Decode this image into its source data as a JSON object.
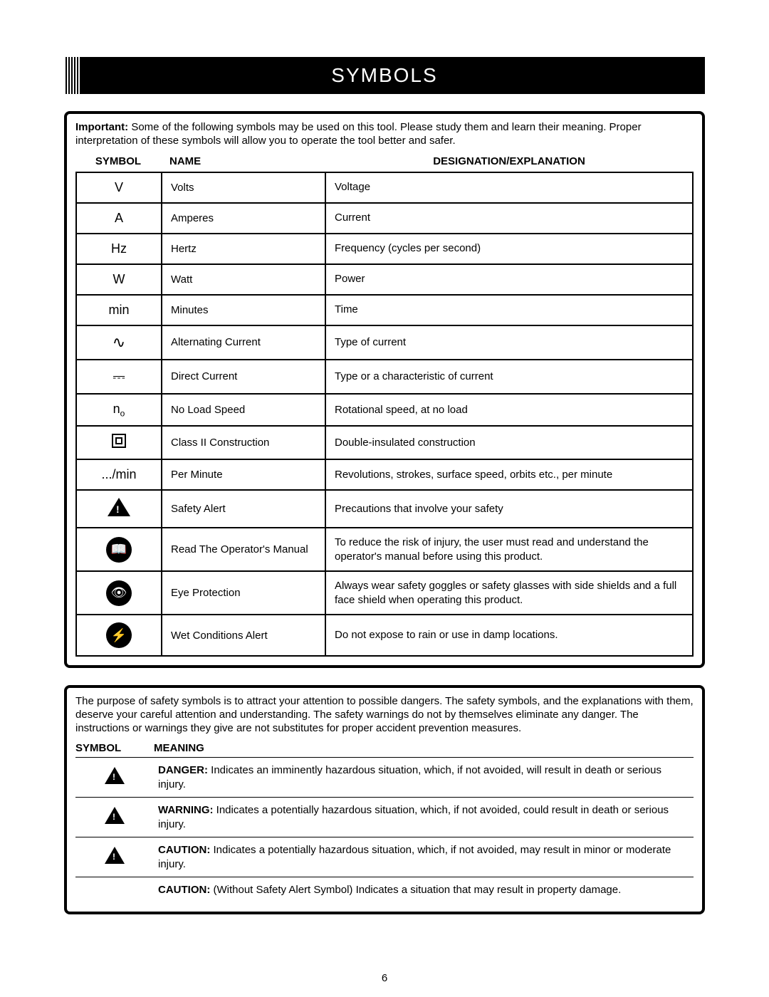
{
  "header": {
    "title": "SYMBOLS"
  },
  "box1": {
    "intro_prefix": "Important:",
    "intro_rest": " Some of the following symbols may be used on this tool. Please study them and learn their meaning. Proper interpretation of these symbols will allow you to operate the tool better and safer.",
    "col_symbol": "SYMBOL",
    "col_name": "NAME",
    "col_desc": "DESIGNATION/EXPLANATION",
    "rows": [
      {
        "sym_type": "text",
        "sym": "V",
        "name": "Volts",
        "desc": "Voltage"
      },
      {
        "sym_type": "text",
        "sym": "A",
        "name": "Amperes",
        "desc": "Current"
      },
      {
        "sym_type": "text",
        "sym": "Hz",
        "name": "Hertz",
        "desc": "Frequency (cycles per second)"
      },
      {
        "sym_type": "text",
        "sym": "W",
        "name": "Watt",
        "desc": "Power"
      },
      {
        "sym_type": "text",
        "sym": "min",
        "name": "Minutes",
        "desc": "Time"
      },
      {
        "sym_type": "glyph",
        "sym": "∿",
        "name": "Alternating Current",
        "desc": "Type of current"
      },
      {
        "sym_type": "glyph",
        "sym": "⎓",
        "name": "Direct Current",
        "desc": "Type or a characteristic of current"
      },
      {
        "sym_type": "nsub",
        "sym": "n",
        "sub": "o",
        "name": "No Load Speed",
        "desc": "Rotational speed, at no load"
      },
      {
        "sym_type": "dblsq",
        "name": "Class II Construction",
        "desc": "Double-insulated construction"
      },
      {
        "sym_type": "text",
        "sym": ".../min",
        "name": "Per Minute",
        "desc": "Revolutions, strokes, surface speed, orbits etc., per minute"
      },
      {
        "sym_type": "tri",
        "name": "Safety Alert",
        "desc": "Precautions that involve your safety"
      },
      {
        "sym_type": "circ",
        "glyph": "📖",
        "name": "Read The Operator's Manual",
        "desc": "To reduce the risk of injury, the user must read and understand the operator's manual before using this product."
      },
      {
        "sym_type": "circ",
        "glyph": "👁",
        "name": "Eye Protection",
        "desc": "Always wear safety goggles or safety glasses with side shields and a full face shield when operating this product."
      },
      {
        "sym_type": "circ",
        "glyph": "⚡",
        "name": "Wet Conditions Alert",
        "desc": "Do not expose to rain or use in damp locations."
      }
    ]
  },
  "box2": {
    "intro": "The purpose of safety symbols is to attract your attention to possible dangers. The safety symbols, and the explanations with them, deserve your careful attention and understanding. The safety warnings do not by themselves eliminate any danger. The instructions or warnings they give are not substitutes for proper accident prevention measures.",
    "col_symbol": "SYMBOL",
    "col_meaning": "MEANING",
    "rows": [
      {
        "icon": true,
        "label": "DANGER:",
        "text": " Indicates an imminently hazardous situation, which, if not avoided, will result in death or serious injury."
      },
      {
        "icon": true,
        "label": "WARNING:",
        "text": " Indicates a potentially hazardous situation, which, if not avoided, could result in death or serious injury."
      },
      {
        "icon": true,
        "label": "CAUTION:",
        "text": " Indicates a potentially hazardous situation, which, if not avoided, may result in minor or moderate injury."
      },
      {
        "icon": false,
        "label": "CAUTION:",
        "text": " (Without Safety Alert Symbol) Indicates a situation that may result in property damage."
      }
    ]
  },
  "page_number": "6"
}
